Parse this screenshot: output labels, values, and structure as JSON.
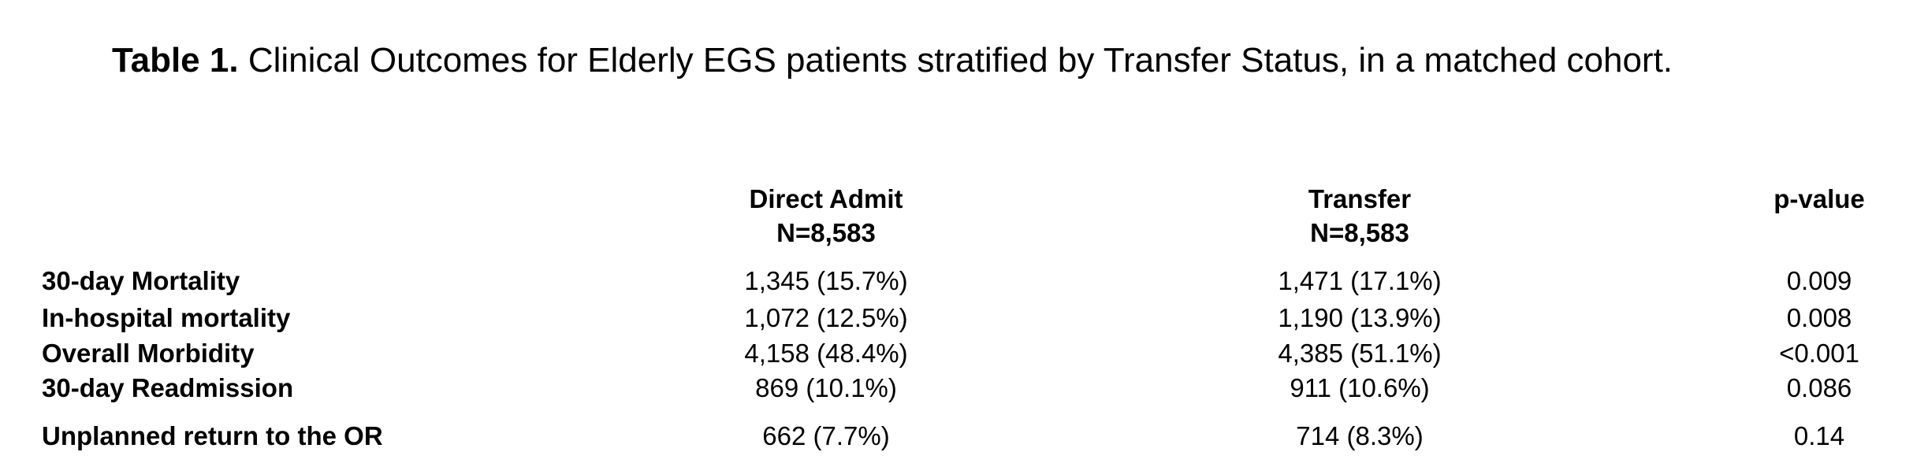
{
  "caption": {
    "label": "Table 1.",
    "text": "Clinical Outcomes for Elderly EGS patients stratified by Transfer Status, in a matched cohort."
  },
  "table": {
    "columns": [
      {
        "name": "Direct Admit",
        "n": "N=8,583"
      },
      {
        "name": "Transfer",
        "n": "N=8,583"
      },
      {
        "name": "p-value"
      }
    ],
    "rows": [
      [
        "30-day Mortality",
        "1,345 (15.7%)",
        "1,471 (17.1%)",
        "0.009"
      ],
      [
        "In-hospital mortality",
        "1,072 (12.5%)",
        "1,190 (13.9%)",
        "0.008"
      ],
      [
        "Overall Morbidity",
        "4,158 (48.4%)",
        "4,385 (51.1%)",
        "<0.001"
      ],
      [
        "30-day Readmission",
        "869 (10.1%)",
        "911 (10.6%)",
        "0.086"
      ],
      [
        "Unplanned return to the OR",
        "662 (7.7%)",
        "714 (8.3%)",
        "0.14"
      ]
    ]
  }
}
